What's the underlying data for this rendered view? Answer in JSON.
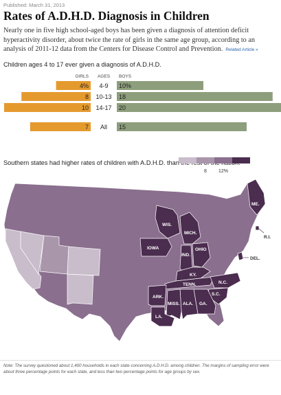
{
  "published": "Published: March 31, 2013",
  "title": "Rates of A.D.H.D. Diagnosis in Children",
  "deck": "Nearly one in five high school-aged boys has been given a diagnosis of attention deficit hyperactivity disorder, about twice the rate of girls in the same age group, according to an analysis of 2011-12 data from the Centers for Disease Control and Prevention.",
  "related_link": "Related Article »",
  "colors": {
    "girls": "#e59a2e",
    "boys": "#8d9e7c",
    "low": "#c9bccb",
    "mid": "#8a6f8e",
    "high": "#4b2d4f"
  },
  "chart_data": [
    {
      "type": "bar",
      "title": "Children ages 4 to 17 ever given a diagnosis of A.D.H.D.",
      "headers": {
        "girls": "GIRLS",
        "ages": "AGES",
        "boys": "BOYS"
      },
      "categories": [
        "4-9",
        "10-13",
        "14-17",
        "All"
      ],
      "series": [
        {
          "name": "GIRLS",
          "values": [
            4,
            8,
            10,
            7
          ],
          "labels": [
            "4%",
            "8",
            "10",
            "7"
          ]
        },
        {
          "name": "BOYS",
          "values": [
            10,
            18,
            20,
            15
          ],
          "labels": [
            "10%",
            "18",
            "20",
            "15"
          ]
        }
      ],
      "orientation": "horizontal-diverging"
    },
    {
      "type": "heatmap",
      "title": "Southern states had higher rates of children with A.D.H.D. than the rest of the nation.",
      "legend": {
        "labels": [
          "8",
          "12%"
        ],
        "placement": "top-right"
      },
      "state_labels": [
        "ME.",
        "R.I.",
        "DEL.",
        "WIS.",
        "MICH.",
        "IOWA",
        "OHIO",
        "IND.",
        "KY.",
        "TENN.",
        "N.C.",
        "S.C.",
        "ARK.",
        "MISS.",
        "ALA.",
        "GA.",
        "LA."
      ]
    }
  ],
  "note": "Note: The survey questioned about 1,400 households in each state concerning A.D.H.D. among children. The margins of sampling error were about three percentage points for each state, and less than two percentage points for age groups by sex."
}
